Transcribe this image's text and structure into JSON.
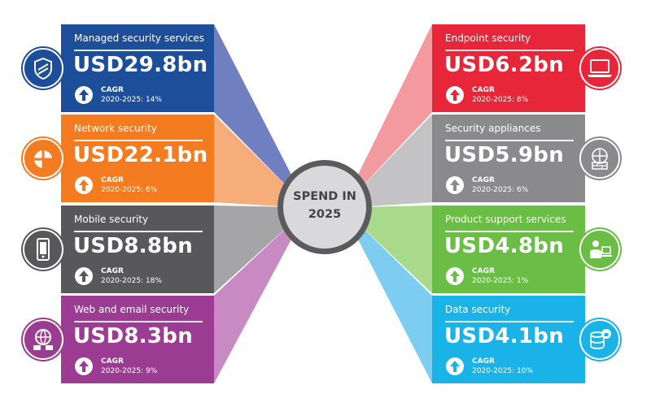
{
  "center": {
    "line1": "SPEND IN",
    "line2": "2025"
  },
  "segments": [
    {
      "side": "left",
      "title": "Managed security services",
      "value": "USD29.8bn",
      "cagr_label": "CAGR",
      "cagr_text": "2020-2025: 14%",
      "color": "#1d4e9a",
      "band_color": "#6f7fc0",
      "icon": "shield-icon"
    },
    {
      "side": "left",
      "title": "Network security",
      "value": "USD22.1bn",
      "cagr_label": "CAGR",
      "cagr_text": "2020-2025: 6%",
      "color": "#f47b20",
      "band_color": "#f7ad7a",
      "icon": "network-shield-icon"
    },
    {
      "side": "left",
      "title": "Mobile security",
      "value": "USD8.8bn",
      "cagr_label": "CAGR",
      "cagr_text": "2020-2025: 18%",
      "color": "#58585b",
      "band_color": "#a5a5a8",
      "icon": "mobile-phone-icon"
    },
    {
      "side": "left",
      "title": "Web and email security",
      "value": "USD8.3bn",
      "cagr_label": "CAGR",
      "cagr_text": "2020-2025: 9%",
      "color": "#9b3b91",
      "band_color": "#c98ac4",
      "icon": "globe-email-icon"
    },
    {
      "side": "right",
      "title": "Endpoint security",
      "value": "USD6.2bn",
      "cagr_label": "CAGR",
      "cagr_text": "2020-2025: 8%",
      "color": "#e8263a",
      "band_color": "#f29a9e",
      "icon": "laptop-icon"
    },
    {
      "side": "right",
      "title": "Security appliances",
      "value": "USD5.9bn",
      "cagr_label": "CAGR",
      "cagr_text": "2020-2025: 6%",
      "color": "#8a8a8d",
      "band_color": "#c3c3c5",
      "icon": "firewall-globe-icon"
    },
    {
      "side": "right",
      "title": "Product support services",
      "value": "USD4.8bn",
      "cagr_label": "CAGR",
      "cagr_text": "2020-2025: 1%",
      "color": "#6abd45",
      "band_color": "#a9d98a",
      "icon": "support-person-icon"
    },
    {
      "side": "right",
      "title": "Data security",
      "value": "USD4.1bn",
      "cagr_label": "CAGR",
      "cagr_text": "2020-2025: 10%",
      "color": "#1ab3e8",
      "band_color": "#7ccdf0",
      "icon": "data-lock-icon"
    }
  ]
}
